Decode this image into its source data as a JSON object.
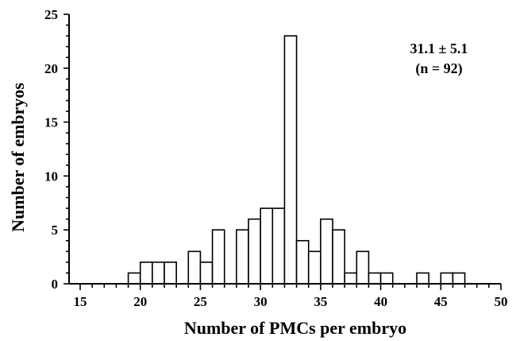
{
  "chart_data": {
    "type": "bar",
    "xlabel": "Number of PMCs per embryo",
    "ylabel": "Number of embryos",
    "xlim": [
      15,
      50
    ],
    "ylim": [
      0,
      25
    ],
    "x_ticks": [
      15,
      20,
      25,
      30,
      35,
      40,
      45,
      50
    ],
    "y_ticks": [
      0,
      5,
      10,
      15,
      20,
      25
    ],
    "bin_width": 1,
    "bins": [
      {
        "x": 19,
        "value": 1
      },
      {
        "x": 20,
        "value": 2
      },
      {
        "x": 21,
        "value": 2
      },
      {
        "x": 22,
        "value": 2
      },
      {
        "x": 24,
        "value": 3
      },
      {
        "x": 25,
        "value": 2
      },
      {
        "x": 26,
        "value": 5
      },
      {
        "x": 28,
        "value": 5
      },
      {
        "x": 29,
        "value": 6
      },
      {
        "x": 30,
        "value": 7
      },
      {
        "x": 31,
        "value": 7
      },
      {
        "x": 32,
        "value": 23
      },
      {
        "x": 33,
        "value": 4
      },
      {
        "x": 34,
        "value": 3
      },
      {
        "x": 35,
        "value": 6
      },
      {
        "x": 36,
        "value": 5
      },
      {
        "x": 37,
        "value": 1
      },
      {
        "x": 38,
        "value": 3
      },
      {
        "x": 39,
        "value": 1
      },
      {
        "x": 40,
        "value": 1
      },
      {
        "x": 43,
        "value": 1
      },
      {
        "x": 45,
        "value": 1
      },
      {
        "x": 46,
        "value": 1
      }
    ],
    "annotation": {
      "line1": "31.1 ± 5.1",
      "line2": "(n = 92)"
    }
  }
}
